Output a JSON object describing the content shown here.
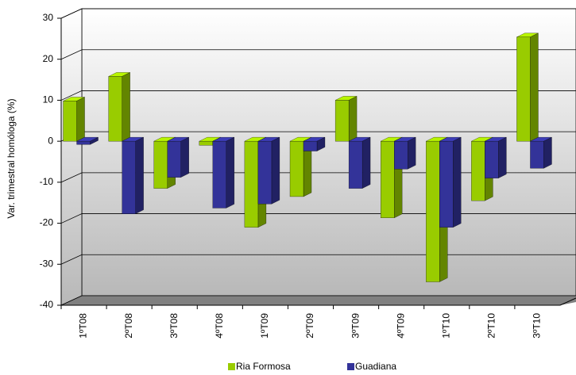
{
  "chart_data": {
    "type": "bar3d",
    "y_label": "Var. trimestral homóloga (%)",
    "categories": [
      "1ºT08",
      "2ºT08",
      "3ºT08",
      "4ºT08",
      "1ºT09",
      "2ºT09",
      "3ºT09",
      "4ºT09",
      "1ºT10",
      "2ºT10",
      "3ºT10"
    ],
    "series": [
      {
        "name": "Ria Formosa",
        "color": "#99cc00",
        "values": [
          9.8,
          15.8,
          -11.5,
          -1,
          -21,
          -13.5,
          10,
          -18.7,
          -34.3,
          -14.5,
          25.4
        ]
      },
      {
        "name": "Guadiana",
        "color": "#333399",
        "values": [
          -0.8,
          -17.7,
          -8.8,
          -16.3,
          -15.3,
          -2.4,
          -11.5,
          -6.8,
          -21,
          -9,
          -6.6
        ]
      }
    ],
    "ylim": [
      -40,
      30
    ],
    "yticks": [
      -40,
      -30,
      -20,
      -10,
      0,
      10,
      20,
      30
    ],
    "grid": true
  }
}
